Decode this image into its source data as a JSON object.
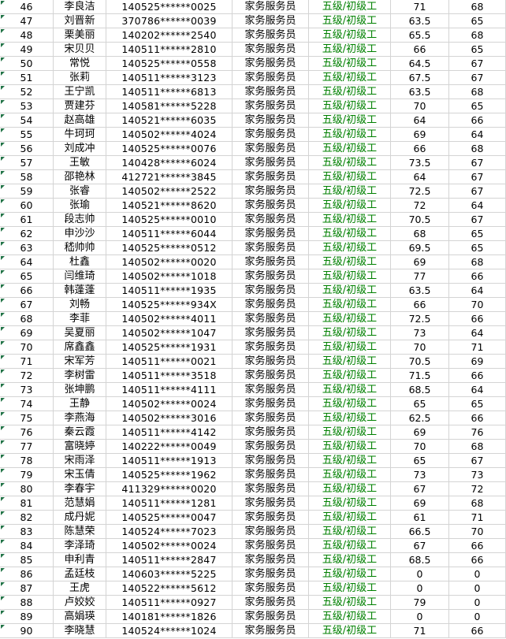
{
  "sheet": {
    "description": "Excel-like results grid, rows 46-90",
    "colors": {
      "level_text": "#008000",
      "error_triangle": "#217346",
      "gridline": "#d4d4d4",
      "background": "#ffffff",
      "text": "#000000"
    },
    "columns": [
      {
        "key": "row_number",
        "name": "row-number"
      },
      {
        "key": "name",
        "name": "name"
      },
      {
        "key": "id_number",
        "name": "id-number"
      },
      {
        "key": "occupation",
        "name": "occupation"
      },
      {
        "key": "level",
        "name": "level"
      },
      {
        "key": "score1",
        "name": "score-1"
      },
      {
        "key": "score2",
        "name": "score-2"
      }
    ],
    "rows": [
      [
        "46",
        "李良洁",
        "140525******0025",
        "家务服务员",
        "五级/初级工",
        "71",
        "68"
      ],
      [
        "47",
        "刘晋新",
        "370786******0039",
        "家务服务员",
        "五级/初级工",
        "63.5",
        "65"
      ],
      [
        "48",
        "栗美丽",
        "140202******2540",
        "家务服务员",
        "五级/初级工",
        "65.5",
        "68"
      ],
      [
        "49",
        "宋贝贝",
        "140511******2810",
        "家务服务员",
        "五级/初级工",
        "66",
        "65"
      ],
      [
        "50",
        "常悦",
        "140525******0558",
        "家务服务员",
        "五级/初级工",
        "64.5",
        "67"
      ],
      [
        "51",
        "张莉",
        "140511******3123",
        "家务服务员",
        "五级/初级工",
        "67.5",
        "67"
      ],
      [
        "52",
        "王宁凯",
        "140511******6813",
        "家务服务员",
        "五级/初级工",
        "63.5",
        "68"
      ],
      [
        "53",
        "贾建芬",
        "140581******5228",
        "家务服务员",
        "五级/初级工",
        "70",
        "65"
      ],
      [
        "54",
        "赵高雄",
        "140521******6035",
        "家务服务员",
        "五级/初级工",
        "64",
        "66"
      ],
      [
        "55",
        "牛珂珂",
        "140502******4024",
        "家务服务员",
        "五级/初级工",
        "69",
        "64"
      ],
      [
        "56",
        "刘成冲",
        "140525******0076",
        "家务服务员",
        "五级/初级工",
        "66",
        "68"
      ],
      [
        "57",
        "王敏",
        "140428******6024",
        "家务服务员",
        "五级/初级工",
        "73.5",
        "67"
      ],
      [
        "58",
        "邵艳林",
        "412721******3845",
        "家务服务员",
        "五级/初级工",
        "64",
        "67"
      ],
      [
        "59",
        "张睿",
        "140502******2522",
        "家务服务员",
        "五级/初级工",
        "72.5",
        "67"
      ],
      [
        "60",
        "张瑜",
        "140521******8620",
        "家务服务员",
        "五级/初级工",
        "72",
        "64"
      ],
      [
        "61",
        "段志帅",
        "140525******0010",
        "家务服务员",
        "五级/初级工",
        "70.5",
        "67"
      ],
      [
        "62",
        "申沙沙",
        "140511******6044",
        "家务服务员",
        "五级/初级工",
        "68",
        "65"
      ],
      [
        "63",
        "嵇帅帅",
        "140525******0512",
        "家务服务员",
        "五级/初级工",
        "69.5",
        "65"
      ],
      [
        "64",
        "杜鑫",
        "140502******0020",
        "家务服务员",
        "五级/初级工",
        "69",
        "68"
      ],
      [
        "65",
        "闫维琦",
        "140502******1018",
        "家务服务员",
        "五级/初级工",
        "77",
        "66"
      ],
      [
        "66",
        "韩蓬蓬",
        "140511******1935",
        "家务服务员",
        "五级/初级工",
        "63.5",
        "64"
      ],
      [
        "67",
        "刘畅",
        "140525******934X",
        "家务服务员",
        "五级/初级工",
        "66",
        "70"
      ],
      [
        "68",
        "李菲",
        "140502******4011",
        "家务服务员",
        "五级/初级工",
        "72.5",
        "66"
      ],
      [
        "69",
        "吴夏丽",
        "140502******1047",
        "家务服务员",
        "五级/初级工",
        "73",
        "64"
      ],
      [
        "70",
        "席鑫鑫",
        "140525******1931",
        "家务服务员",
        "五级/初级工",
        "70",
        "71"
      ],
      [
        "71",
        "宋军芳",
        "140511******0021",
        "家务服务员",
        "五级/初级工",
        "70.5",
        "69"
      ],
      [
        "72",
        "李树雷",
        "140511******3518",
        "家务服务员",
        "五级/初级工",
        "71.5",
        "66"
      ],
      [
        "73",
        "张坤鹏",
        "140511******4111",
        "家务服务员",
        "五级/初级工",
        "68.5",
        "64"
      ],
      [
        "74",
        "王静",
        "140502******0024",
        "家务服务员",
        "五级/初级工",
        "65",
        "65"
      ],
      [
        "75",
        "李燕海",
        "140502******3016",
        "家务服务员",
        "五级/初级工",
        "62.5",
        "66"
      ],
      [
        "76",
        "秦云霞",
        "140511******4142",
        "家务服务员",
        "五级/初级工",
        "69",
        "76"
      ],
      [
        "77",
        "富晓婷",
        "140222******0049",
        "家务服务员",
        "五级/初级工",
        "70",
        "68"
      ],
      [
        "78",
        "宋雨泽",
        "140511******1913",
        "家务服务员",
        "五级/初级工",
        "65",
        "67"
      ],
      [
        "79",
        "宋玉倩",
        "140525******1962",
        "家务服务员",
        "五级/初级工",
        "73",
        "73"
      ],
      [
        "80",
        "李春宇",
        "411329******0020",
        "家务服务员",
        "五级/初级工",
        "67",
        "72"
      ],
      [
        "81",
        "范慧娟",
        "140511******1281",
        "家务服务员",
        "五级/初级工",
        "69",
        "68"
      ],
      [
        "82",
        "成丹妮",
        "140525******0047",
        "家务服务员",
        "五级/初级工",
        "61",
        "71"
      ],
      [
        "83",
        "陈慧荣",
        "140524******7023",
        "家务服务员",
        "五级/初级工",
        "66.5",
        "70"
      ],
      [
        "84",
        "李泽琦",
        "140502******0024",
        "家务服务员",
        "五级/初级工",
        "67",
        "66"
      ],
      [
        "85",
        "申利青",
        "140511******2847",
        "家务服务员",
        "五级/初级工",
        "68.5",
        "66"
      ],
      [
        "86",
        "孟廷枝",
        "140603******5225",
        "家务服务员",
        "五级/初级工",
        "0",
        "0"
      ],
      [
        "87",
        "王虎",
        "140522******5612",
        "家务服务员",
        "五级/初级工",
        "0",
        "0"
      ],
      [
        "88",
        "卢姣姣",
        "140511******0927",
        "家务服务员",
        "五级/初级工",
        "79",
        "0"
      ],
      [
        "89",
        "高娟瑛",
        "140181******1826",
        "家务服务员",
        "五级/初级工",
        "0",
        "0"
      ],
      [
        "90",
        "李晓慧",
        "140524******1024",
        "家务服务员",
        "五级/初级工",
        "71",
        "66"
      ]
    ]
  }
}
